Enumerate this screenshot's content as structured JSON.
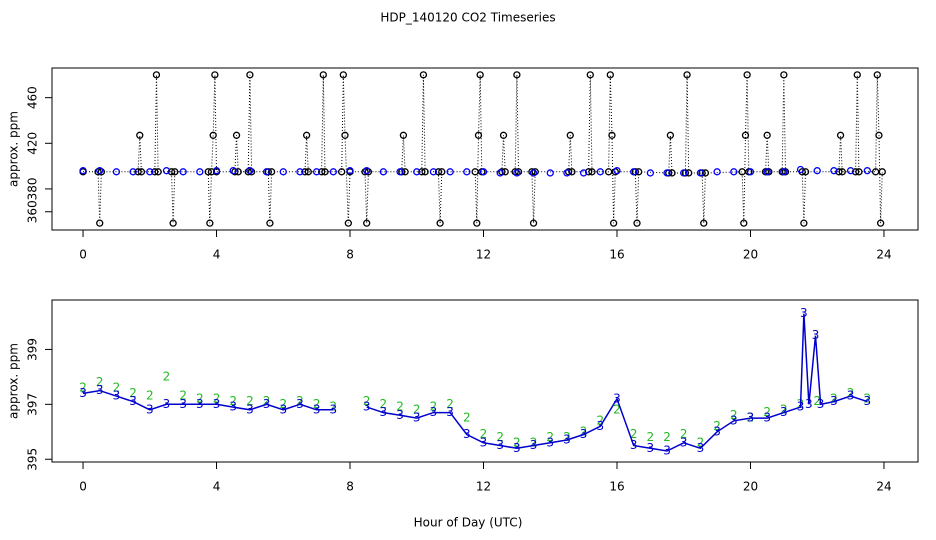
{
  "chart_data": [
    {
      "type": "line",
      "title": "HDP_140120  CO2 Timeseries",
      "ylabel": "approx. ppm",
      "xlim": [
        -0.93,
        25.02
      ],
      "xticks": [
        0,
        4,
        8,
        12,
        16,
        20,
        24
      ],
      "ylim": [
        344,
        486
      ],
      "yticks": [
        360,
        380,
        420,
        460
      ],
      "series": [
        {
          "color": "#000000",
          "marker": "circle",
          "line": "dotted",
          "x": [
            0.0,
            0.45,
            0.5,
            0.55,
            1.65,
            1.7,
            1.75,
            2.15,
            2.2,
            2.25,
            2.65,
            2.7,
            2.75,
            3.75,
            3.8,
            3.85,
            3.9,
            3.95,
            4.0,
            4.55,
            4.6,
            4.65,
            4.95,
            5.0,
            5.05,
            5.55,
            5.6,
            5.65,
            6.65,
            6.7,
            6.75,
            7.15,
            7.2,
            7.25,
            7.75,
            7.8,
            7.85,
            7.95,
            8.0,
            8.45,
            8.5,
            8.55,
            9.55,
            9.6,
            9.65,
            10.15,
            10.2,
            10.25,
            10.65,
            10.7,
            10.75,
            11.75,
            11.8,
            11.85,
            11.9,
            11.95,
            12.55,
            12.6,
            12.65,
            12.95,
            13.0,
            13.05,
            13.45,
            13.5,
            13.55,
            14.55,
            14.6,
            14.65,
            15.15,
            15.2,
            15.25,
            15.75,
            15.8,
            15.85,
            15.9,
            15.95,
            16.55,
            16.6,
            16.65,
            17.55,
            17.6,
            17.65,
            18.05,
            18.1,
            18.15,
            18.55,
            18.6,
            18.65,
            19.75,
            19.8,
            19.85,
            19.9,
            19.95,
            20.45,
            20.5,
            20.55,
            20.95,
            21.0,
            21.05,
            21.55,
            21.6,
            21.65,
            22.65,
            22.7,
            22.75,
            23.15,
            23.2,
            23.25,
            23.75,
            23.8,
            23.85,
            23.9,
            23.95
          ],
          "values": [
            395,
            395,
            350,
            395,
            395,
            427,
            395,
            395,
            480,
            395,
            395,
            350,
            395,
            395,
            350,
            395,
            427,
            480,
            395,
            395,
            427,
            395,
            395,
            480,
            395,
            395,
            350,
            395,
            395,
            427,
            395,
            395,
            480,
            395,
            395,
            480,
            427,
            350,
            395,
            395,
            350,
            395,
            395,
            427,
            395,
            395,
            480,
            395,
            395,
            350,
            395,
            395,
            350,
            427,
            480,
            395,
            395,
            427,
            395,
            395,
            480,
            395,
            395,
            350,
            395,
            395,
            427,
            395,
            395,
            480,
            395,
            395,
            480,
            427,
            350,
            395,
            395,
            350,
            395,
            394,
            427,
            394,
            394,
            480,
            394,
            394,
            350,
            394,
            395,
            350,
            427,
            480,
            395,
            395,
            427,
            395,
            395,
            480,
            395,
            395,
            350,
            395,
            395,
            427,
            395,
            395,
            480,
            395,
            395,
            480,
            427,
            350,
            395
          ]
        },
        {
          "color": "#0000ff",
          "marker": "circle",
          "line": "none",
          "x": [
            0.0,
            0.5,
            1.0,
            1.5,
            2.0,
            2.5,
            3.0,
            3.5,
            4.0,
            4.5,
            5.0,
            5.5,
            6.0,
            6.5,
            7.0,
            7.5,
            8.0,
            8.5,
            9.0,
            9.5,
            10.0,
            10.5,
            11.0,
            11.5,
            12.0,
            12.5,
            13.0,
            13.5,
            14.0,
            14.5,
            15.0,
            15.5,
            16.0,
            16.5,
            17.0,
            17.5,
            18.0,
            18.5,
            19.0,
            19.5,
            20.0,
            20.5,
            21.0,
            21.5,
            22.0,
            22.5,
            23.0,
            23.5
          ],
          "values": [
            396,
            396,
            395,
            395,
            395,
            396,
            395,
            395,
            396,
            396,
            396,
            395,
            395,
            395,
            395,
            395,
            396,
            396,
            395,
            395,
            395,
            395,
            395,
            395,
            395,
            394,
            394,
            394,
            394,
            394,
            394,
            395,
            396,
            395,
            394,
            394,
            394,
            394,
            395,
            395,
            395,
            395,
            395,
            397,
            396,
            396,
            396,
            396
          ]
        }
      ]
    },
    {
      "type": "line",
      "ylabel": "approx. ppm",
      "xlabel": "Hour of Day (UTC)",
      "xlim": [
        -0.93,
        25.02
      ],
      "xticks": [
        0,
        4,
        8,
        12,
        16,
        20,
        24
      ],
      "ylim": [
        394.9,
        400.8
      ],
      "yticks": [
        395,
        397,
        399
      ],
      "series": [
        {
          "color": "#22bb22",
          "marker": "2",
          "line": "none",
          "x": [
            0.0,
            0.5,
            1.0,
            1.5,
            2.0,
            2.5,
            3.0,
            3.5,
            4.0,
            4.5,
            5.0,
            5.5,
            6.0,
            6.5,
            7.0,
            7.5,
            8.0,
            8.5,
            9.0,
            9.5,
            10.0,
            10.5,
            11.0,
            11.5,
            12.0,
            12.5,
            13.0,
            13.5,
            14.0,
            14.5,
            15.0,
            15.5,
            16.0,
            16.5,
            17.0,
            17.5,
            18.0,
            18.5,
            19.0,
            19.5,
            20.0,
            20.5,
            21.0,
            21.5,
            22.0,
            22.5,
            23.0,
            23.5
          ],
          "values": [
            397.6,
            397.8,
            397.6,
            397.4,
            397.3,
            398.0,
            397.3,
            397.2,
            397.2,
            397.1,
            397.1,
            397.1,
            397.0,
            397.1,
            397.0,
            396.9,
            null,
            397.1,
            397.0,
            396.9,
            396.8,
            396.9,
            397.0,
            396.5,
            395.9,
            395.8,
            395.6,
            395.6,
            395.8,
            395.8,
            396.0,
            396.4,
            396.8,
            395.9,
            395.8,
            395.8,
            395.9,
            395.6,
            396.2,
            396.6,
            396.5,
            396.7,
            396.8,
            397.0,
            397.1,
            397.2,
            397.4,
            397.2
          ]
        },
        {
          "color": "#0000cd",
          "marker": "3",
          "line": "solid",
          "x": [
            0.0,
            0.5,
            1.0,
            1.5,
            2.0,
            2.5,
            3.0,
            3.5,
            4.0,
            4.5,
            5.0,
            5.5,
            6.0,
            6.5,
            7.0,
            7.5,
            8.0,
            8.5,
            9.0,
            9.5,
            10.0,
            10.5,
            11.0,
            11.5,
            12.0,
            12.5,
            13.0,
            13.5,
            14.0,
            14.5,
            15.0,
            15.5,
            16.0,
            16.5,
            17.0,
            17.5,
            18.0,
            18.5,
            19.0,
            19.5,
            20.0,
            20.5,
            21.0,
            21.5,
            21.6,
            21.75,
            21.95,
            22.1,
            22.5,
            23.0,
            23.5
          ],
          "values": [
            397.4,
            397.5,
            397.3,
            397.1,
            396.8,
            397.0,
            397.0,
            397.0,
            397.0,
            396.9,
            396.8,
            397.0,
            396.8,
            397.0,
            396.8,
            396.8,
            null,
            396.9,
            396.7,
            396.6,
            396.5,
            396.7,
            396.7,
            395.9,
            395.6,
            395.5,
            395.4,
            395.5,
            395.6,
            395.7,
            395.9,
            396.2,
            397.2,
            395.5,
            395.4,
            395.3,
            395.6,
            395.4,
            396.0,
            396.4,
            396.5,
            396.5,
            396.7,
            396.9,
            400.3,
            397.0,
            399.5,
            397.0,
            397.1,
            397.3,
            397.1
          ]
        }
      ]
    }
  ]
}
